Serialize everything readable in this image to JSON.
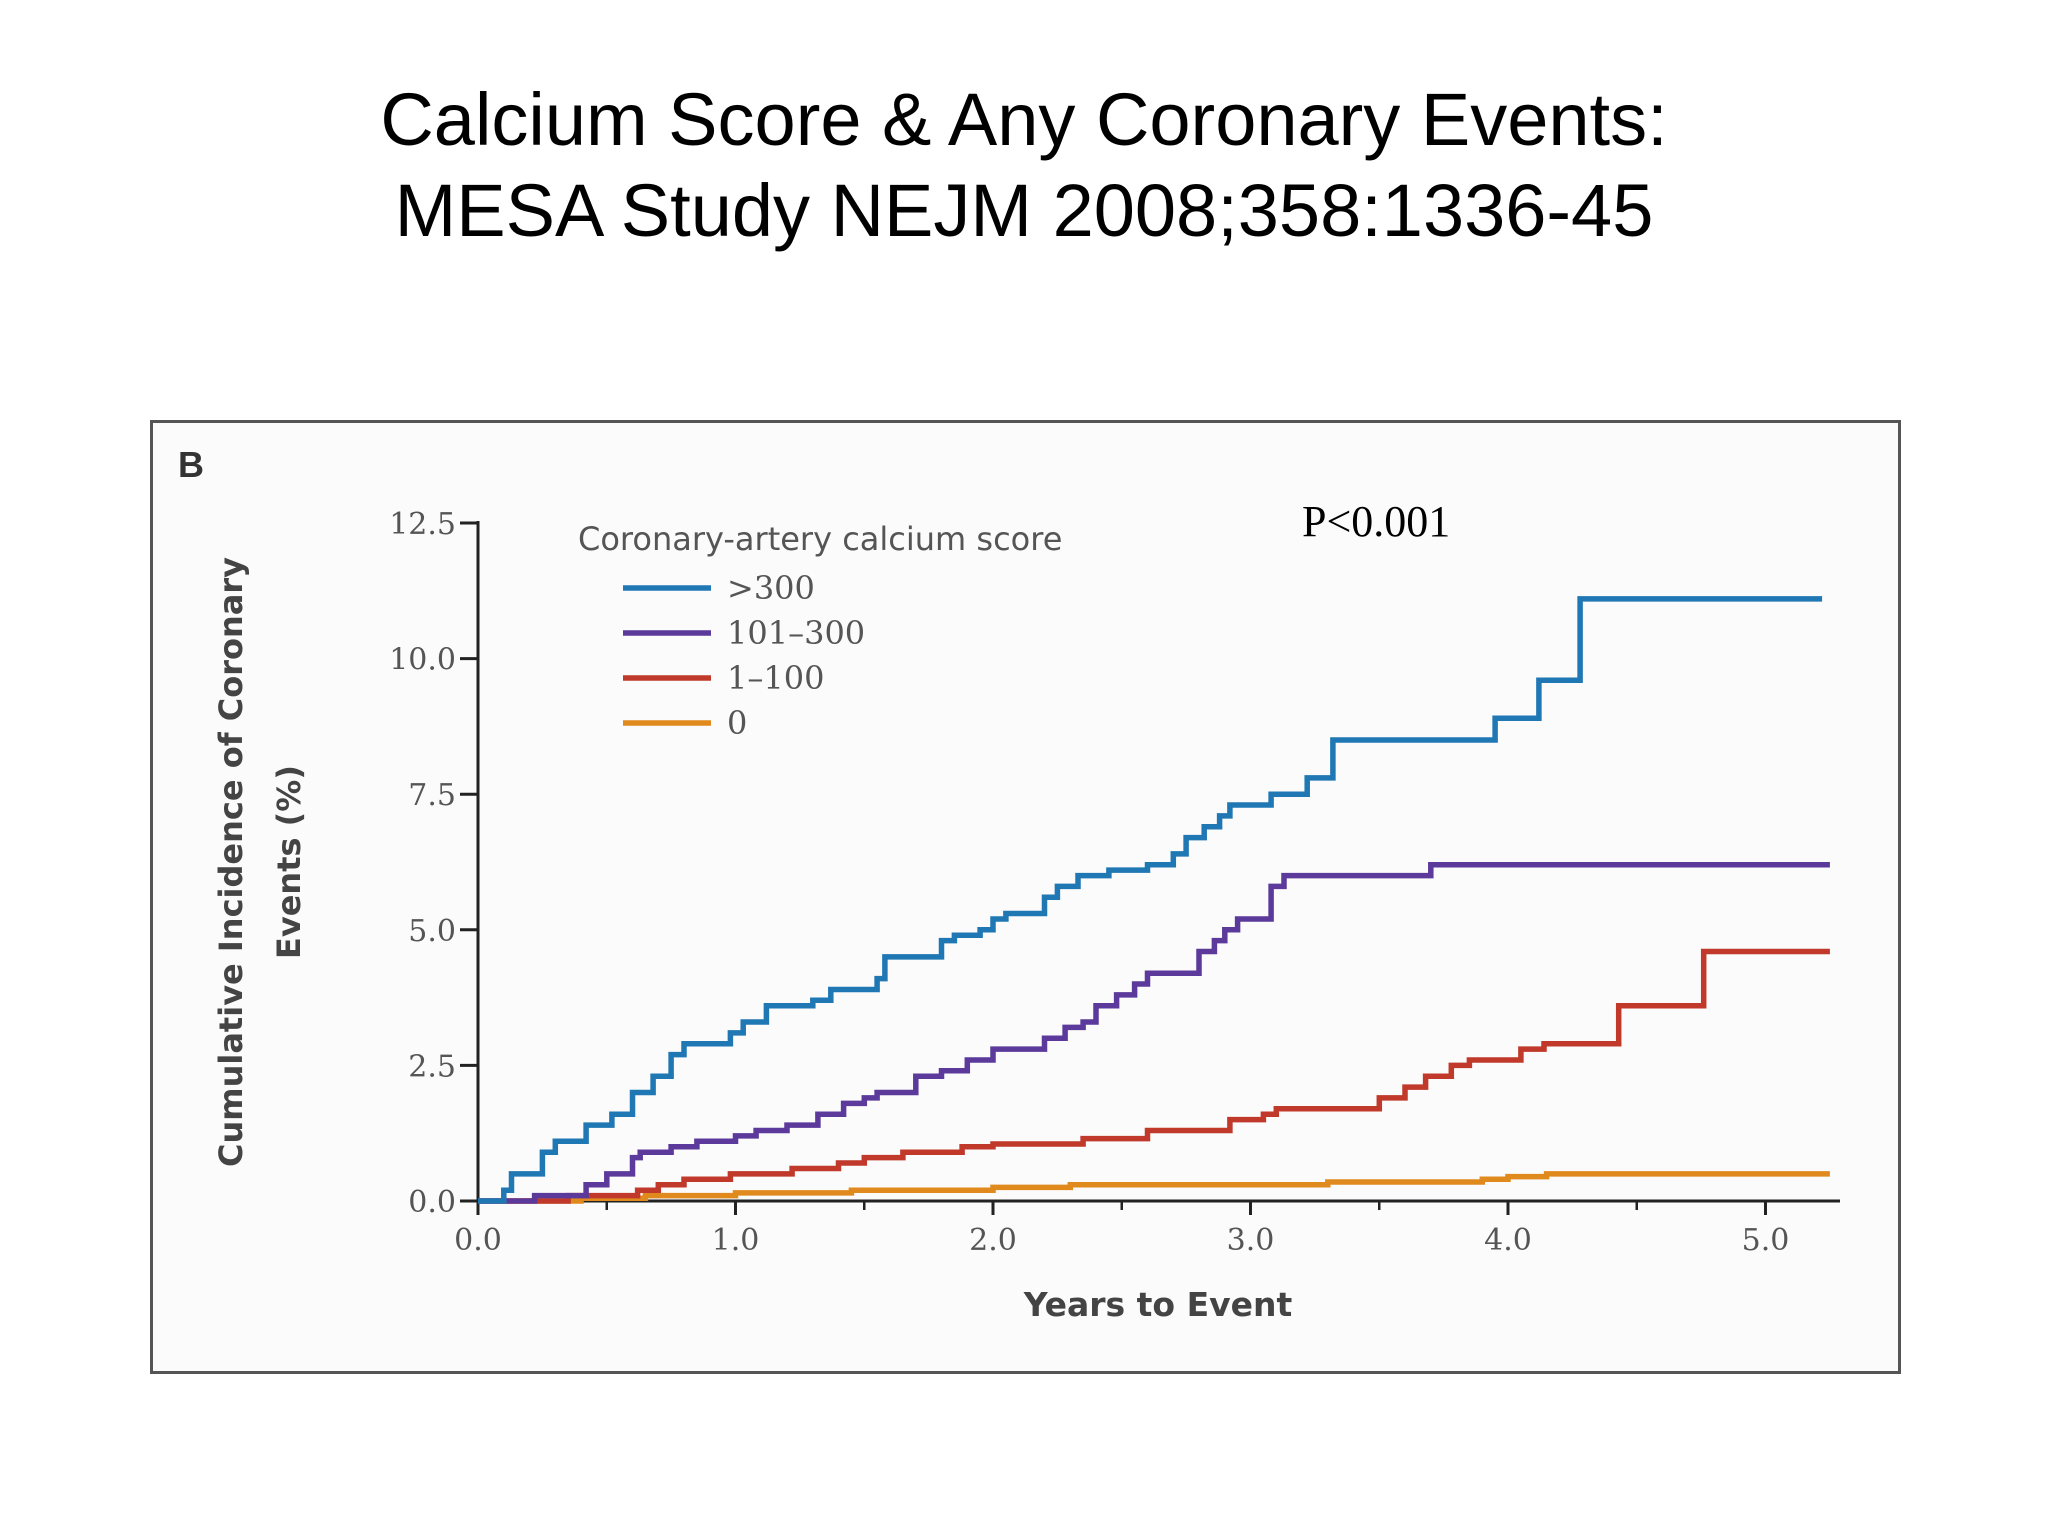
{
  "slide": {
    "title_line1": "Calcium Score & Any Coronary Events:",
    "title_line2": "MESA Study NEJM 2008;358:1336-45"
  },
  "chart_data": {
    "type": "line",
    "panel_label": "B",
    "annotation": "P<0.001",
    "xlabel": "Years to Event",
    "ylabel_line1": "Cumulative Incidence of Coronary",
    "ylabel_line2": "Events (%)",
    "xlim": [
      0,
      5.3
    ],
    "ylim": [
      0,
      12.5
    ],
    "xticks": [
      "0.0",
      "1.0",
      "2.0",
      "3.0",
      "4.0",
      "5.0"
    ],
    "xtick_values": [
      0,
      1,
      2,
      3,
      4,
      5
    ],
    "yticks": [
      "0.0",
      "2.5",
      "5.0",
      "7.5",
      "10.0",
      "12.5"
    ],
    "ytick_values": [
      0,
      2.5,
      5,
      7.5,
      10,
      12.5
    ],
    "grid": false,
    "step": true,
    "legend": {
      "title": "Coronary-artery calcium score",
      "position": "top-left"
    },
    "series": [
      {
        "name": ">300",
        "color": "#1f77b4",
        "points": [
          [
            0,
            0
          ],
          [
            0.1,
            0
          ],
          [
            0.1,
            0.2
          ],
          [
            0.13,
            0.2
          ],
          [
            0.13,
            0.5
          ],
          [
            0.25,
            0.5
          ],
          [
            0.25,
            0.9
          ],
          [
            0.3,
            0.9
          ],
          [
            0.3,
            1.1
          ],
          [
            0.42,
            1.1
          ],
          [
            0.42,
            1.4
          ],
          [
            0.52,
            1.4
          ],
          [
            0.52,
            1.6
          ],
          [
            0.6,
            1.6
          ],
          [
            0.6,
            2.0
          ],
          [
            0.68,
            2.0
          ],
          [
            0.68,
            2.3
          ],
          [
            0.75,
            2.3
          ],
          [
            0.75,
            2.7
          ],
          [
            0.8,
            2.7
          ],
          [
            0.8,
            2.9
          ],
          [
            0.98,
            2.9
          ],
          [
            0.98,
            3.1
          ],
          [
            1.03,
            3.1
          ],
          [
            1.03,
            3.3
          ],
          [
            1.12,
            3.3
          ],
          [
            1.12,
            3.6
          ],
          [
            1.3,
            3.6
          ],
          [
            1.3,
            3.7
          ],
          [
            1.37,
            3.7
          ],
          [
            1.37,
            3.9
          ],
          [
            1.55,
            3.9
          ],
          [
            1.55,
            4.1
          ],
          [
            1.58,
            4.1
          ],
          [
            1.58,
            4.5
          ],
          [
            1.8,
            4.5
          ],
          [
            1.8,
            4.8
          ],
          [
            1.85,
            4.8
          ],
          [
            1.85,
            4.9
          ],
          [
            1.95,
            4.9
          ],
          [
            1.95,
            5.0
          ],
          [
            2.0,
            5.0
          ],
          [
            2.0,
            5.2
          ],
          [
            2.05,
            5.2
          ],
          [
            2.05,
            5.3
          ],
          [
            2.2,
            5.3
          ],
          [
            2.2,
            5.6
          ],
          [
            2.25,
            5.6
          ],
          [
            2.25,
            5.8
          ],
          [
            2.33,
            5.8
          ],
          [
            2.33,
            6.0
          ],
          [
            2.45,
            6.0
          ],
          [
            2.45,
            6.1
          ],
          [
            2.6,
            6.1
          ],
          [
            2.6,
            6.2
          ],
          [
            2.7,
            6.2
          ],
          [
            2.7,
            6.4
          ],
          [
            2.75,
            6.4
          ],
          [
            2.75,
            6.7
          ],
          [
            2.82,
            6.7
          ],
          [
            2.82,
            6.9
          ],
          [
            2.88,
            6.9
          ],
          [
            2.88,
            7.1
          ],
          [
            2.92,
            7.1
          ],
          [
            2.92,
            7.3
          ],
          [
            3.08,
            7.3
          ],
          [
            3.08,
            7.5
          ],
          [
            3.22,
            7.5
          ],
          [
            3.22,
            7.8
          ],
          [
            3.32,
            7.8
          ],
          [
            3.32,
            8.5
          ],
          [
            3.95,
            8.5
          ],
          [
            3.95,
            8.9
          ],
          [
            4.12,
            8.9
          ],
          [
            4.12,
            9.6
          ],
          [
            4.28,
            9.6
          ],
          [
            4.28,
            11.1
          ],
          [
            5.22,
            11.1
          ]
        ]
      },
      {
        "name": "101–300",
        "color": "#5b3a9b",
        "points": [
          [
            0,
            0
          ],
          [
            0.22,
            0
          ],
          [
            0.22,
            0.1
          ],
          [
            0.42,
            0.1
          ],
          [
            0.42,
            0.3
          ],
          [
            0.5,
            0.3
          ],
          [
            0.5,
            0.5
          ],
          [
            0.6,
            0.5
          ],
          [
            0.6,
            0.8
          ],
          [
            0.63,
            0.8
          ],
          [
            0.63,
            0.9
          ],
          [
            0.75,
            0.9
          ],
          [
            0.75,
            1.0
          ],
          [
            0.85,
            1.0
          ],
          [
            0.85,
            1.1
          ],
          [
            1.0,
            1.1
          ],
          [
            1.0,
            1.2
          ],
          [
            1.08,
            1.2
          ],
          [
            1.08,
            1.3
          ],
          [
            1.2,
            1.3
          ],
          [
            1.2,
            1.4
          ],
          [
            1.32,
            1.4
          ],
          [
            1.32,
            1.6
          ],
          [
            1.42,
            1.6
          ],
          [
            1.42,
            1.8
          ],
          [
            1.5,
            1.8
          ],
          [
            1.5,
            1.9
          ],
          [
            1.55,
            1.9
          ],
          [
            1.55,
            2.0
          ],
          [
            1.7,
            2.0
          ],
          [
            1.7,
            2.3
          ],
          [
            1.8,
            2.3
          ],
          [
            1.8,
            2.4
          ],
          [
            1.9,
            2.4
          ],
          [
            1.9,
            2.6
          ],
          [
            2.0,
            2.6
          ],
          [
            2.0,
            2.8
          ],
          [
            2.2,
            2.8
          ],
          [
            2.2,
            3.0
          ],
          [
            2.28,
            3.0
          ],
          [
            2.28,
            3.2
          ],
          [
            2.35,
            3.2
          ],
          [
            2.35,
            3.3
          ],
          [
            2.4,
            3.3
          ],
          [
            2.4,
            3.6
          ],
          [
            2.48,
            3.6
          ],
          [
            2.48,
            3.8
          ],
          [
            2.55,
            3.8
          ],
          [
            2.55,
            4.0
          ],
          [
            2.6,
            4.0
          ],
          [
            2.6,
            4.2
          ],
          [
            2.8,
            4.2
          ],
          [
            2.8,
            4.6
          ],
          [
            2.86,
            4.6
          ],
          [
            2.86,
            4.8
          ],
          [
            2.9,
            4.8
          ],
          [
            2.9,
            5.0
          ],
          [
            2.95,
            5.0
          ],
          [
            2.95,
            5.2
          ],
          [
            3.08,
            5.2
          ],
          [
            3.08,
            5.8
          ],
          [
            3.13,
            5.8
          ],
          [
            3.13,
            6.0
          ],
          [
            3.7,
            6.0
          ],
          [
            3.7,
            6.2
          ],
          [
            5.25,
            6.2
          ]
        ]
      },
      {
        "name": "1–100",
        "color": "#c0392b",
        "points": [
          [
            0,
            0
          ],
          [
            0.35,
            0
          ],
          [
            0.35,
            0.1
          ],
          [
            0.62,
            0.1
          ],
          [
            0.62,
            0.2
          ],
          [
            0.7,
            0.2
          ],
          [
            0.7,
            0.3
          ],
          [
            0.8,
            0.3
          ],
          [
            0.8,
            0.4
          ],
          [
            0.98,
            0.4
          ],
          [
            0.98,
            0.5
          ],
          [
            1.22,
            0.5
          ],
          [
            1.22,
            0.6
          ],
          [
            1.4,
            0.6
          ],
          [
            1.4,
            0.7
          ],
          [
            1.5,
            0.7
          ],
          [
            1.5,
            0.8
          ],
          [
            1.65,
            0.8
          ],
          [
            1.65,
            0.9
          ],
          [
            1.88,
            0.9
          ],
          [
            1.88,
            1.0
          ],
          [
            2.0,
            1.0
          ],
          [
            2.0,
            1.05
          ],
          [
            2.35,
            1.05
          ],
          [
            2.35,
            1.15
          ],
          [
            2.6,
            1.15
          ],
          [
            2.6,
            1.3
          ],
          [
            2.92,
            1.3
          ],
          [
            2.92,
            1.5
          ],
          [
            3.05,
            1.5
          ],
          [
            3.05,
            1.6
          ],
          [
            3.1,
            1.6
          ],
          [
            3.1,
            1.7
          ],
          [
            3.5,
            1.7
          ],
          [
            3.5,
            1.9
          ],
          [
            3.6,
            1.9
          ],
          [
            3.6,
            2.1
          ],
          [
            3.68,
            2.1
          ],
          [
            3.68,
            2.3
          ],
          [
            3.78,
            2.3
          ],
          [
            3.78,
            2.5
          ],
          [
            3.85,
            2.5
          ],
          [
            3.85,
            2.6
          ],
          [
            4.05,
            2.6
          ],
          [
            4.05,
            2.8
          ],
          [
            4.14,
            2.8
          ],
          [
            4.14,
            2.9
          ],
          [
            4.43,
            2.9
          ],
          [
            4.43,
            3.6
          ],
          [
            4.76,
            3.6
          ],
          [
            4.76,
            4.6
          ],
          [
            5.25,
            4.6
          ]
        ]
      },
      {
        "name": "0",
        "color": "#e08a1e",
        "points": [
          [
            0,
            0
          ],
          [
            0.4,
            0
          ],
          [
            0.4,
            0.05
          ],
          [
            0.65,
            0.05
          ],
          [
            0.65,
            0.1
          ],
          [
            1.0,
            0.1
          ],
          [
            1.0,
            0.15
          ],
          [
            1.45,
            0.15
          ],
          [
            1.45,
            0.2
          ],
          [
            2.0,
            0.2
          ],
          [
            2.0,
            0.25
          ],
          [
            2.3,
            0.25
          ],
          [
            2.3,
            0.3
          ],
          [
            3.3,
            0.3
          ],
          [
            3.3,
            0.35
          ],
          [
            3.9,
            0.35
          ],
          [
            3.9,
            0.4
          ],
          [
            4.0,
            0.4
          ],
          [
            4.0,
            0.45
          ],
          [
            4.15,
            0.45
          ],
          [
            4.15,
            0.5
          ],
          [
            5.25,
            0.5
          ]
        ]
      }
    ]
  }
}
